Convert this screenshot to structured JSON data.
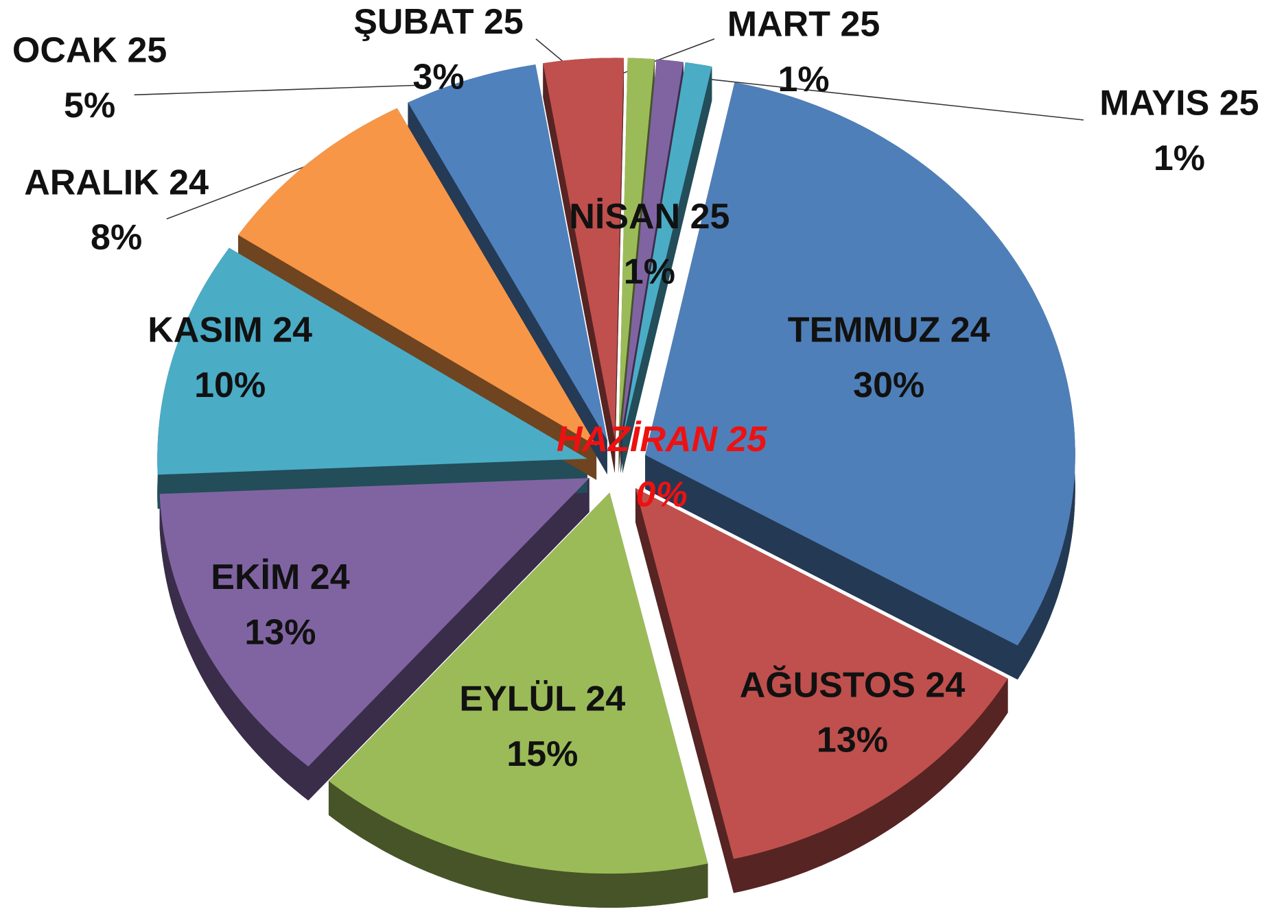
{
  "chart_data": {
    "type": "pie",
    "categories": [
      "TEMMUZ 24",
      "AĞUSTOS 24",
      "EYLÜL 24",
      "EKİM 24",
      "KASIM 24",
      "ARALIK 24",
      "OCAK 25",
      "ŞUBAT 25",
      "MART 25",
      "NİSAN 25",
      "MAYIS 25",
      "HAZİRAN 25"
    ],
    "values": [
      30,
      13,
      15,
      13,
      10,
      8,
      5,
      3,
      1,
      1,
      1,
      0
    ],
    "value_labels": [
      "30%",
      "13%",
      "15%",
      "13%",
      "10%",
      "8%",
      "5%",
      "3%",
      "1%",
      "1%",
      "1%",
      "0%"
    ],
    "colors": [
      "#4f7fb8",
      "#c0504d",
      "#9bbb59",
      "#8064a2",
      "#4bacc6",
      "#f79646",
      "#4f81bd",
      "#c0504d",
      "#9bbb59",
      "#8064a2",
      "#4bacc6",
      "#f79646"
    ]
  }
}
